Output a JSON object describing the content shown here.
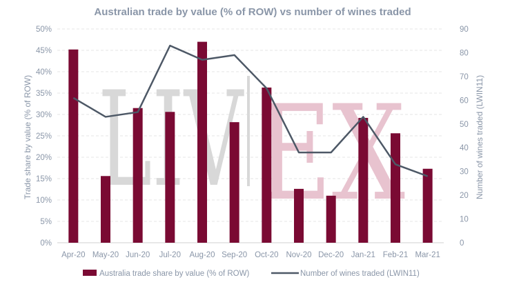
{
  "chart_data": {
    "type": "bar+line",
    "title": "Australian trade by value (% of ROW) vs number of wines traded",
    "categories": [
      "Apr-20",
      "May-20",
      "Jun-20",
      "Jul-20",
      "Aug-20",
      "Sep-20",
      "Oct-20",
      "Nov-20",
      "Dec-20",
      "Jan-21",
      "Feb-21",
      "Mar-21"
    ],
    "series": [
      {
        "name": "Australia trade share by value (% of ROW)",
        "type": "bar",
        "axis": "left",
        "color": "#7a0a33",
        "values": [
          45.2,
          15.6,
          31.5,
          30.6,
          47.0,
          28.2,
          36.3,
          12.6,
          11.0,
          29.2,
          25.6,
          17.3
        ]
      },
      {
        "name": "Number of wines traded (LWIN11)",
        "type": "line",
        "axis": "right",
        "color": "#4d5866",
        "values": [
          61,
          53,
          55,
          83,
          77,
          79,
          65,
          38,
          38,
          53,
          33,
          28
        ]
      }
    ],
    "ylabel": "Trade share by value (% of ROW)",
    "y2label": "Number of wines traded (LWIN11)",
    "ylim": [
      0,
      50
    ],
    "yticks": [
      "0%",
      "5%",
      "10%",
      "15%",
      "20%",
      "25%",
      "30%",
      "35%",
      "40%",
      "45%",
      "50%"
    ],
    "y2lim": [
      0,
      90
    ],
    "y2ticks": [
      "0",
      "10",
      "20",
      "30",
      "40",
      "50",
      "60",
      "70",
      "80",
      "90"
    ],
    "grid": "horizontal dashed",
    "legend": "bottom",
    "watermark": "LIV|EX"
  }
}
